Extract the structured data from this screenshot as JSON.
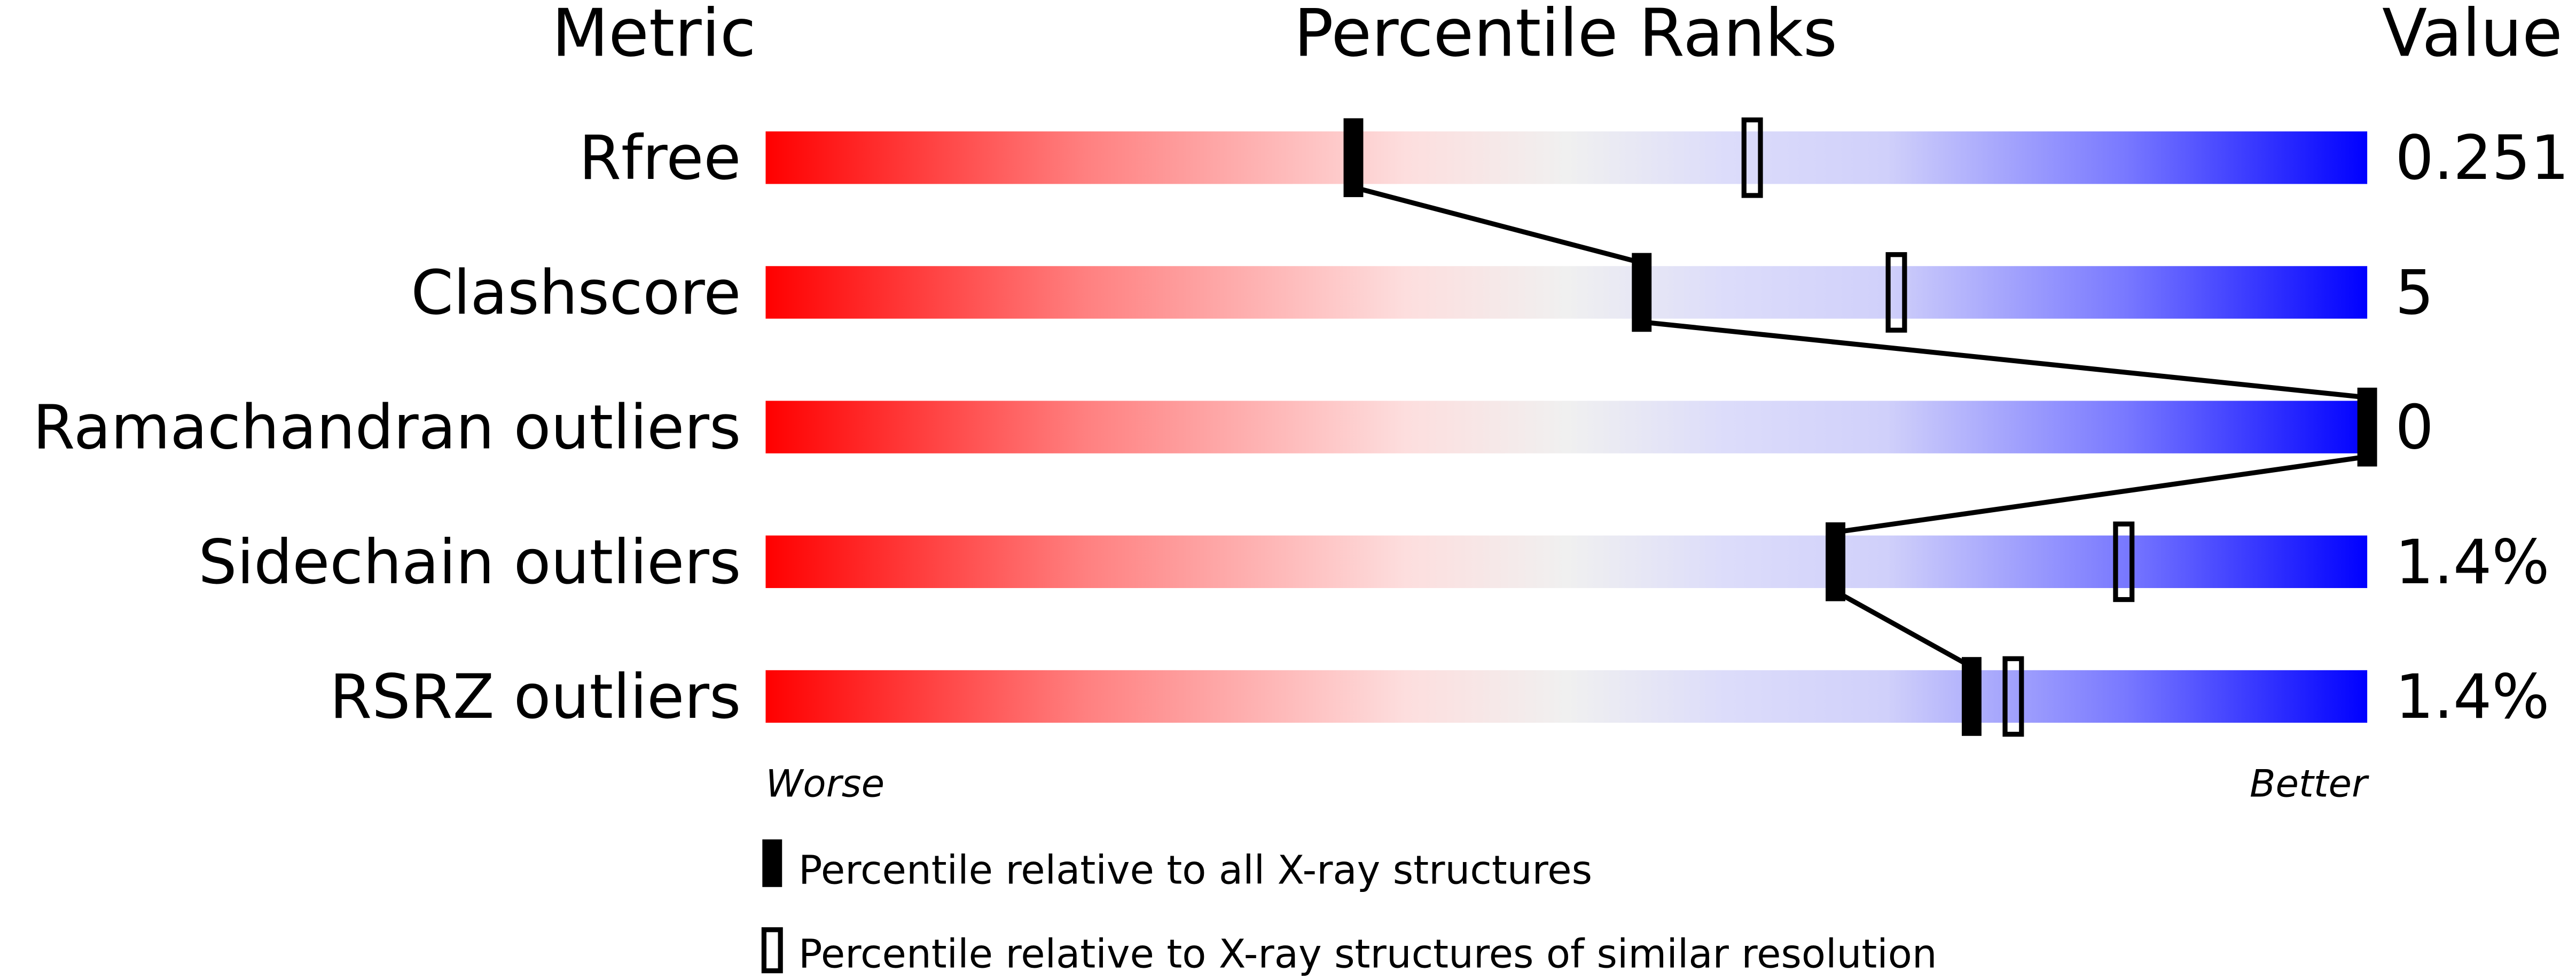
{
  "chart_data": {
    "type": "bar",
    "headers": {
      "metric": "Metric",
      "ranks": "Percentile Ranks",
      "value": "Value"
    },
    "xlim": [
      0,
      100
    ],
    "axis_labels": {
      "worse": "Worse",
      "better": "Better"
    },
    "rows": [
      {
        "metric": "Rfree",
        "value": "0.251",
        "percentile_all": 36.7,
        "percentile_similar": 61.6
      },
      {
        "metric": "Clashscore",
        "value": "5",
        "percentile_all": 54.7,
        "percentile_similar": 70.6
      },
      {
        "metric": "Ramachandran outliers",
        "value": "0",
        "percentile_all": 100,
        "percentile_similar": 100
      },
      {
        "metric": "Sidechain outliers",
        "value": "1.4%",
        "percentile_all": 66.8,
        "percentile_similar": 84.8
      },
      {
        "metric": "RSRZ outliers",
        "value": "1.4%",
        "percentile_all": 75.3,
        "percentile_similar": 77.9
      }
    ],
    "legend": {
      "all": "Percentile relative to all X-ray structures",
      "similar": "Percentile relative to X-ray structures of similar resolution"
    },
    "colors": {
      "worse": "#ff0000",
      "middle": "#f0f0f0",
      "better": "#0000ff",
      "marker": "#000000"
    }
  }
}
